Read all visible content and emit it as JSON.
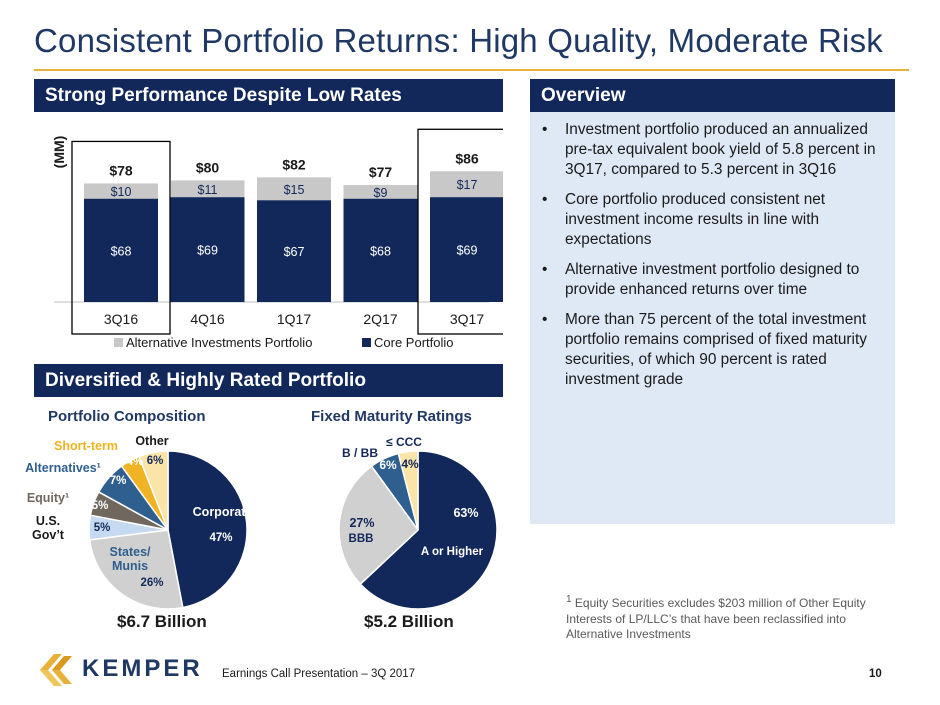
{
  "title": "Consistent Portfolio Returns: High Quality, Moderate Risk",
  "sections": {
    "performance": "Strong Performance Despite Low Rates",
    "overview": "Overview",
    "diversified": "Diversified & Highly Rated Portfolio"
  },
  "overview_bullets": [
    "Investment portfolio produced an annualized pre-tax equivalent book yield of 5.8 percent in 3Q17, compared to 5.3 percent in 3Q16",
    "Core portfolio produced consistent net investment income results in line with expectations",
    "Alternative investment portfolio designed to provide enhanced returns over time",
    "More than 75 percent of the total investment portfolio remains comprised of fixed maturity securities, of which 90 percent is rated investment grade"
  ],
  "bullet_char": "•",
  "footnote": {
    "marker": "1",
    "text": " Equity Securities excludes $203 million of Other Equity Interests of LP/LLC’s that have been reclassified into Alternative Investments"
  },
  "portfolio_composition": {
    "heading": "Portfolio Composition",
    "total": "$6.7 Billion"
  },
  "fixed_maturity": {
    "heading": "Fixed Maturity Ratings",
    "total": "$5.2 Billion"
  },
  "footer": {
    "logo_text": "KEMPER",
    "center": "Earnings Call Presentation – 3Q 2017",
    "page": "10"
  },
  "colors": {
    "navy": "#13285a",
    "alt_gray": "#c8c8c8",
    "states_gray": "#d0d0d0",
    "usgov_blue": "#c5daf0",
    "equity_brown": "#70675f",
    "alternatives_blue": "#2f5f8f",
    "shortterm_gold": "#f0b323",
    "other_cream": "#fbe4a8",
    "overview_bg": "#dfe9f5"
  },
  "chart_data": [
    {
      "type": "bar",
      "stacked": true,
      "ylabel": "(MM)",
      "categories": [
        "3Q16",
        "4Q16",
        "1Q17",
        "2Q17",
        "3Q17"
      ],
      "series": [
        {
          "name": "Core Portfolio",
          "values": [
            68,
            69,
            67,
            68,
            69
          ],
          "labels": [
            "$68",
            "$69",
            "$67",
            "$68",
            "$69"
          ]
        },
        {
          "name": "Alternative Investments Portfolio",
          "values": [
            10,
            11,
            15,
            9,
            17
          ],
          "labels": [
            "$10",
            "$11",
            "$15",
            "$9",
            "$17"
          ]
        }
      ],
      "totals": [
        "$78",
        "$80",
        "$82",
        "$77",
        "$86"
      ],
      "legend": [
        "Alternative Investments Portfolio",
        "Core Portfolio"
      ],
      "legend_position": "bottom",
      "ylim": [
        0,
        100
      ],
      "highlighted_categories": [
        "3Q16",
        "3Q17"
      ]
    },
    {
      "type": "pie",
      "title": "Portfolio Composition",
      "slices": [
        {
          "name": "Corporates",
          "label": "Corporates",
          "value": 47,
          "pct_label": "47%"
        },
        {
          "name": "States/Munis",
          "label": "States/\nMunis",
          "value": 26,
          "pct_label": "26%"
        },
        {
          "name": "U.S. Gov't",
          "label": "U.S.\nGov’t",
          "value": 5,
          "pct_label": "5%"
        },
        {
          "name": "Equity",
          "label": "Equity¹",
          "value": 5,
          "pct_label": "5%"
        },
        {
          "name": "Alternatives",
          "label": "Alternatives¹",
          "value": 7,
          "pct_label": "7%"
        },
        {
          "name": "Short-term",
          "label": "Short-term",
          "value": 4,
          "pct_label": "4%"
        },
        {
          "name": "Other",
          "label": "Other",
          "value": 6,
          "pct_label": "6%"
        }
      ]
    },
    {
      "type": "pie",
      "title": "Fixed Maturity Ratings",
      "slices": [
        {
          "name": "A or Higher",
          "label": "A or Higher",
          "value": 63,
          "pct_label": "63%"
        },
        {
          "name": "BBB",
          "label": "BBB",
          "value": 27,
          "pct_label": "27%"
        },
        {
          "name": "B / BB",
          "label": "B / BB",
          "value": 6,
          "pct_label": "6%"
        },
        {
          "name": "≤ CCC",
          "label": "≤ CCC",
          "value": 4,
          "pct_label": "4%"
        }
      ]
    }
  ]
}
